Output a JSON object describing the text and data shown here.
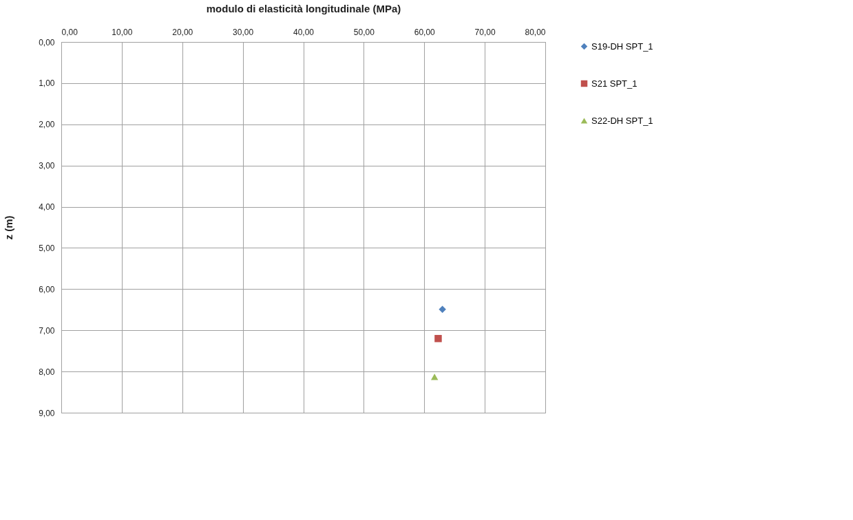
{
  "chart_data": {
    "type": "scatter",
    "xlabel": "modulo di elasticità longitudinale (MPa)",
    "ylabel": "z (m)",
    "xlim": [
      0,
      80
    ],
    "ylim": [
      9,
      0
    ],
    "xticks": [
      {
        "value": 0,
        "label": "0,00"
      },
      {
        "value": 10,
        "label": "10,00"
      },
      {
        "value": 20,
        "label": "20,00"
      },
      {
        "value": 30,
        "label": "30,00"
      },
      {
        "value": 40,
        "label": "40,00"
      },
      {
        "value": 50,
        "label": "50,00"
      },
      {
        "value": 60,
        "label": "60,00"
      },
      {
        "value": 70,
        "label": "70,00"
      },
      {
        "value": 80,
        "label": "80,00"
      }
    ],
    "yticks": [
      {
        "value": 0,
        "label": "0,00"
      },
      {
        "value": 1,
        "label": "1,00"
      },
      {
        "value": 2,
        "label": "2,00"
      },
      {
        "value": 3,
        "label": "3,00"
      },
      {
        "value": 4,
        "label": "4,00"
      },
      {
        "value": 5,
        "label": "5,00"
      },
      {
        "value": 6,
        "label": "6,00"
      },
      {
        "value": 7,
        "label": "7,00"
      },
      {
        "value": 8,
        "label": "8,00"
      },
      {
        "value": 9,
        "label": "9,00"
      }
    ],
    "grid": true,
    "legend": "right",
    "series": [
      {
        "name": "S19-DH SPT_1",
        "color": "#4f81bd",
        "marker": "diamond",
        "x": [
          63.0
        ],
        "values": [
          6.49
        ]
      },
      {
        "name": "S21 SPT_1",
        "color": "#c0504d",
        "marker": "square",
        "x": [
          62.3
        ],
        "values": [
          7.2
        ]
      },
      {
        "name": "S22-DH  SPT_1",
        "color": "#9bbb59",
        "marker": "triangle",
        "x": [
          61.7
        ],
        "values": [
          8.13
        ]
      }
    ]
  }
}
